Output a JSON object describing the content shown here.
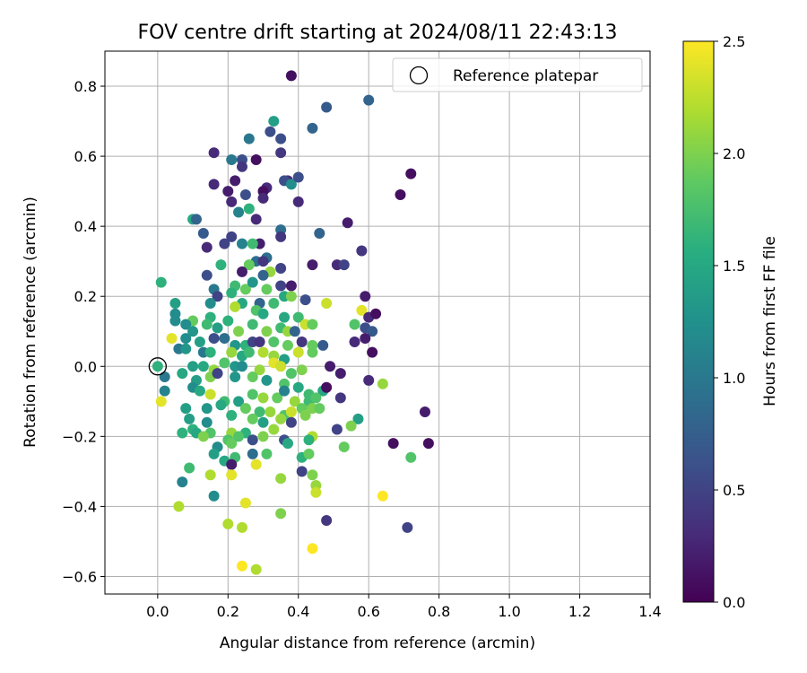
{
  "chart_data": {
    "type": "scatter",
    "title": "FOV centre drift starting at 2024/08/11 22:43:13",
    "xlabel": "Angular distance from reference (arcmin)",
    "ylabel": "Rotation from reference (arcmin)",
    "xlim": [
      -0.15,
      1.4
    ],
    "ylim": [
      -0.65,
      0.9
    ],
    "x_ticks": [
      0.0,
      0.2,
      0.4,
      0.6,
      0.8,
      1.0,
      1.2,
      1.4
    ],
    "x_tick_labels": [
      "0.0",
      "0.2",
      "0.4",
      "0.6",
      "0.8",
      "1.0",
      "1.2",
      "1.4"
    ],
    "y_ticks": [
      -0.6,
      -0.4,
      -0.2,
      0.0,
      0.2,
      0.4,
      0.6,
      0.8
    ],
    "y_tick_labels": [
      "−0.6",
      "−0.4",
      "−0.2",
      "0.0",
      "0.2",
      "0.4",
      "0.6",
      "0.8"
    ],
    "grid": true,
    "colormap": "viridis",
    "colorbar": {
      "label": "Hours from first FF file",
      "range": [
        0.0,
        2.5
      ],
      "ticks": [
        0.0,
        0.5,
        1.0,
        1.5,
        2.0,
        2.5
      ],
      "tick_labels": [
        "0.0",
        "0.5",
        "1.0",
        "1.5",
        "2.0",
        "2.5"
      ]
    },
    "legend": {
      "placement": "top-right",
      "label": "Reference platepar"
    },
    "reference_point": {
      "x": 0.0,
      "y": 0.0
    },
    "points": [
      [
        0.38,
        0.83,
        0.1
      ],
      [
        0.6,
        0.76,
        0.8
      ],
      [
        0.48,
        0.74,
        0.7
      ],
      [
        0.33,
        0.7,
        1.4
      ],
      [
        0.44,
        0.68,
        0.8
      ],
      [
        0.32,
        0.67,
        0.6
      ],
      [
        0.26,
        0.65,
        1.0
      ],
      [
        0.35,
        0.65,
        0.6
      ],
      [
        0.16,
        0.61,
        0.3
      ],
      [
        0.35,
        0.61,
        0.4
      ],
      [
        0.21,
        0.59,
        1.0
      ],
      [
        0.24,
        0.59,
        0.6
      ],
      [
        0.28,
        0.59,
        0.1
      ],
      [
        0.24,
        0.57,
        0.4
      ],
      [
        0.37,
        0.53,
        0.3
      ],
      [
        0.16,
        0.52,
        0.3
      ],
      [
        0.22,
        0.53,
        0.2
      ],
      [
        0.31,
        0.51,
        0.3
      ],
      [
        0.36,
        0.53,
        0.6
      ],
      [
        0.38,
        0.52,
        1.2
      ],
      [
        0.4,
        0.54,
        0.6
      ],
      [
        0.72,
        0.55,
        0.1
      ],
      [
        0.2,
        0.5,
        0.2
      ],
      [
        0.25,
        0.49,
        0.6
      ],
      [
        0.3,
        0.5,
        0.1
      ],
      [
        0.21,
        0.47,
        0.3
      ],
      [
        0.3,
        0.48,
        0.3
      ],
      [
        0.4,
        0.47,
        0.3
      ],
      [
        0.69,
        0.49,
        0.1
      ],
      [
        0.23,
        0.44,
        1.1
      ],
      [
        0.26,
        0.45,
        1.6
      ],
      [
        0.1,
        0.42,
        1.5
      ],
      [
        0.11,
        0.42,
        0.8
      ],
      [
        0.28,
        0.42,
        0.3
      ],
      [
        0.35,
        0.39,
        0.9
      ],
      [
        0.46,
        0.38,
        0.8
      ],
      [
        0.54,
        0.41,
        0.2
      ],
      [
        0.13,
        0.38,
        0.7
      ],
      [
        0.21,
        0.37,
        0.5
      ],
      [
        0.29,
        0.35,
        0.2
      ],
      [
        0.35,
        0.37,
        0.4
      ],
      [
        0.19,
        0.35,
        0.5
      ],
      [
        0.14,
        0.34,
        0.3
      ],
      [
        0.24,
        0.35,
        1.1
      ],
      [
        0.27,
        0.35,
        1.7
      ],
      [
        0.58,
        0.33,
        0.4
      ],
      [
        0.31,
        0.31,
        0.9
      ],
      [
        0.28,
        0.3,
        0.9
      ],
      [
        0.18,
        0.29,
        1.6
      ],
      [
        0.26,
        0.29,
        1.9
      ],
      [
        0.3,
        0.3,
        0.4
      ],
      [
        0.44,
        0.29,
        0.2
      ],
      [
        0.51,
        0.29,
        0.3
      ],
      [
        0.53,
        0.29,
        0.5
      ],
      [
        0.35,
        0.28,
        0.5
      ],
      [
        0.24,
        0.27,
        0.2
      ],
      [
        0.32,
        0.27,
        2.1
      ],
      [
        0.14,
        0.26,
        0.6
      ],
      [
        0.3,
        0.26,
        0.8
      ],
      [
        0.01,
        0.24,
        1.6
      ],
      [
        0.16,
        0.22,
        1.0
      ],
      [
        0.22,
        0.23,
        1.7
      ],
      [
        0.25,
        0.22,
        1.9
      ],
      [
        0.35,
        0.23,
        0.5
      ],
      [
        0.38,
        0.23,
        0.2
      ],
      [
        0.17,
        0.2,
        0.5
      ],
      [
        0.21,
        0.21,
        1.6
      ],
      [
        0.27,
        0.24,
        1.3
      ],
      [
        0.31,
        0.22,
        1.9
      ],
      [
        0.36,
        0.2,
        1.5
      ],
      [
        0.38,
        0.2,
        2.0
      ],
      [
        0.15,
        0.18,
        1.2
      ],
      [
        0.24,
        0.18,
        1.5
      ],
      [
        0.29,
        0.18,
        0.8
      ],
      [
        0.33,
        0.18,
        1.7
      ],
      [
        0.42,
        0.19,
        0.6
      ],
      [
        0.48,
        0.18,
        2.3
      ],
      [
        0.59,
        0.2,
        0.2
      ],
      [
        0.05,
        0.18,
        1.4
      ],
      [
        0.05,
        0.15,
        1.2
      ],
      [
        0.1,
        0.13,
        1.9
      ],
      [
        0.15,
        0.14,
        1.6
      ],
      [
        0.2,
        0.13,
        1.6
      ],
      [
        0.22,
        0.17,
        2.2
      ],
      [
        0.28,
        0.16,
        1.8
      ],
      [
        0.3,
        0.15,
        1.5
      ],
      [
        0.36,
        0.14,
        1.5
      ],
      [
        0.4,
        0.14,
        1.7
      ],
      [
        0.42,
        0.12,
        2.3
      ],
      [
        0.58,
        0.16,
        2.4
      ],
      [
        0.6,
        0.14,
        0.3
      ],
      [
        0.62,
        0.15,
        0.1
      ],
      [
        0.05,
        0.13,
        1.2
      ],
      [
        0.08,
        0.12,
        1.2
      ],
      [
        0.1,
        0.1,
        1.3
      ],
      [
        0.14,
        0.12,
        1.7
      ],
      [
        0.17,
        0.11,
        1.4
      ],
      [
        0.23,
        0.1,
        2.0
      ],
      [
        0.27,
        0.12,
        1.7
      ],
      [
        0.31,
        0.1,
        2.0
      ],
      [
        0.35,
        0.11,
        1.7
      ],
      [
        0.37,
        0.1,
        2.1
      ],
      [
        0.39,
        0.1,
        0.8
      ],
      [
        0.44,
        0.12,
        1.9
      ],
      [
        0.56,
        0.12,
        1.8
      ],
      [
        0.59,
        0.11,
        0.6
      ],
      [
        0.61,
        0.1,
        0.7
      ],
      [
        0.04,
        0.08,
        2.4
      ],
      [
        0.08,
        0.08,
        1.2
      ],
      [
        0.12,
        0.07,
        1.4
      ],
      [
        0.16,
        0.08,
        0.6
      ],
      [
        0.19,
        0.08,
        0.9
      ],
      [
        0.22,
        0.06,
        1.3
      ],
      [
        0.25,
        0.06,
        1.6
      ],
      [
        0.27,
        0.07,
        0.5
      ],
      [
        0.29,
        0.07,
        0.4
      ],
      [
        0.33,
        0.07,
        1.8
      ],
      [
        0.37,
        0.06,
        1.9
      ],
      [
        0.41,
        0.07,
        0.4
      ],
      [
        0.44,
        0.06,
        1.9
      ],
      [
        0.47,
        0.06,
        0.7
      ],
      [
        0.56,
        0.07,
        0.3
      ],
      [
        0.59,
        0.08,
        0.2
      ],
      [
        0.06,
        0.05,
        1.0
      ],
      [
        0.08,
        0.05,
        1.3
      ],
      [
        0.13,
        0.04,
        1.0
      ],
      [
        0.15,
        0.04,
        1.6
      ],
      [
        0.21,
        0.04,
        2.1
      ],
      [
        0.24,
        0.03,
        1.5
      ],
      [
        0.26,
        0.04,
        1.7
      ],
      [
        0.3,
        0.04,
        2.2
      ],
      [
        0.33,
        0.03,
        2.1
      ],
      [
        0.36,
        0.02,
        1.4
      ],
      [
        0.4,
        0.04,
        2.3
      ],
      [
        0.44,
        0.04,
        1.9
      ],
      [
        0.61,
        0.04,
        0.1
      ],
      [
        0.0,
        0.0,
        1.6
      ],
      [
        0.1,
        0.0,
        1.4
      ],
      [
        0.13,
        0.0,
        1.5
      ],
      [
        0.16,
        -0.01,
        2.1
      ],
      [
        0.19,
        0.01,
        1.8
      ],
      [
        0.22,
        0.0,
        1.3
      ],
      [
        0.24,
        0.0,
        1.2
      ],
      [
        0.29,
        -0.01,
        2.1
      ],
      [
        0.33,
        0.01,
        2.4
      ],
      [
        0.35,
        0.0,
        2.3
      ],
      [
        0.38,
        -0.02,
        1.8
      ],
      [
        0.41,
        -0.01,
        2.0
      ],
      [
        0.49,
        0.0,
        0.2
      ],
      [
        0.52,
        -0.02,
        0.2
      ],
      [
        0.6,
        -0.04,
        0.3
      ],
      [
        0.64,
        -0.05,
        2.1
      ],
      [
        0.02,
        -0.03,
        1.0
      ],
      [
        0.07,
        -0.02,
        1.5
      ],
      [
        0.11,
        -0.04,
        1.4
      ],
      [
        0.15,
        -0.03,
        2.0
      ],
      [
        0.17,
        -0.02,
        0.5
      ],
      [
        0.22,
        -0.03,
        1.3
      ],
      [
        0.27,
        -0.03,
        1.9
      ],
      [
        0.31,
        -0.04,
        1.3
      ],
      [
        0.36,
        -0.05,
        1.8
      ],
      [
        0.4,
        -0.06,
        1.5
      ],
      [
        0.43,
        -0.08,
        1.7
      ],
      [
        0.47,
        -0.07,
        1.5
      ],
      [
        0.02,
        -0.07,
        1.1
      ],
      [
        0.1,
        -0.06,
        1.2
      ],
      [
        0.12,
        -0.07,
        1.5
      ],
      [
        0.15,
        -0.08,
        2.3
      ],
      [
        0.19,
        -0.1,
        1.7
      ],
      [
        0.23,
        -0.1,
        1.4
      ],
      [
        0.27,
        -0.08,
        1.8
      ],
      [
        0.3,
        -0.09,
        2.1
      ],
      [
        0.34,
        -0.09,
        1.9
      ],
      [
        0.36,
        -0.07,
        1.1
      ],
      [
        0.39,
        -0.1,
        2.1
      ],
      [
        0.43,
        -0.1,
        1.7
      ],
      [
        0.45,
        -0.09,
        1.8
      ],
      [
        0.48,
        -0.06,
        0.1
      ],
      [
        0.52,
        -0.09,
        0.4
      ],
      [
        0.08,
        -0.12,
        1.4
      ],
      [
        0.14,
        -0.12,
        1.3
      ],
      [
        0.18,
        -0.11,
        1.5
      ],
      [
        0.25,
        -0.12,
        1.9
      ],
      [
        0.29,
        -0.13,
        1.7
      ],
      [
        0.32,
        -0.13,
        2.1
      ],
      [
        0.36,
        -0.14,
        1.8
      ],
      [
        0.38,
        -0.13,
        2.3
      ],
      [
        0.41,
        -0.12,
        1.9
      ],
      [
        0.44,
        -0.12,
        2.0
      ],
      [
        0.46,
        -0.12,
        1.9
      ],
      [
        0.76,
        -0.13,
        0.2
      ],
      [
        0.01,
        -0.1,
        2.4
      ],
      [
        0.09,
        -0.15,
        1.4
      ],
      [
        0.14,
        -0.16,
        1.2
      ],
      [
        0.21,
        -0.14,
        1.6
      ],
      [
        0.27,
        -0.15,
        1.9
      ],
      [
        0.3,
        -0.16,
        1.4
      ],
      [
        0.35,
        -0.15,
        2.1
      ],
      [
        0.38,
        -0.16,
        0.5
      ],
      [
        0.42,
        -0.14,
        2.0
      ],
      [
        0.57,
        -0.15,
        1.4
      ],
      [
        0.1,
        -0.18,
        1.6
      ],
      [
        0.15,
        -0.19,
        1.8
      ],
      [
        0.21,
        -0.19,
        2.1
      ],
      [
        0.25,
        -0.19,
        1.6
      ],
      [
        0.33,
        -0.18,
        2.1
      ],
      [
        0.36,
        -0.21,
        0.6
      ],
      [
        0.44,
        -0.2,
        2.2
      ],
      [
        0.51,
        -0.18,
        0.5
      ],
      [
        0.55,
        -0.17,
        2.0
      ],
      [
        0.07,
        -0.19,
        1.6
      ],
      [
        0.11,
        -0.19,
        1.5
      ],
      [
        0.13,
        -0.2,
        2.0
      ],
      [
        0.17,
        -0.23,
        1.2
      ],
      [
        0.2,
        -0.21,
        1.8
      ],
      [
        0.21,
        -0.22,
        1.9
      ],
      [
        0.23,
        -0.2,
        1.8
      ],
      [
        0.27,
        -0.21,
        0.6
      ],
      [
        0.3,
        -0.2,
        2.0
      ],
      [
        0.37,
        -0.22,
        1.5
      ],
      [
        0.43,
        -0.21,
        1.6
      ],
      [
        0.67,
        -0.22,
        0.1
      ],
      [
        0.77,
        -0.22,
        0.1
      ],
      [
        0.16,
        -0.25,
        1.4
      ],
      [
        0.22,
        -0.26,
        1.7
      ],
      [
        0.27,
        -0.25,
        0.9
      ],
      [
        0.31,
        -0.25,
        1.8
      ],
      [
        0.41,
        -0.26,
        1.6
      ],
      [
        0.43,
        -0.25,
        1.9
      ],
      [
        0.53,
        -0.23,
        1.9
      ],
      [
        0.19,
        -0.27,
        1.5
      ],
      [
        0.21,
        -0.28,
        0.2
      ],
      [
        0.28,
        -0.28,
        2.4
      ],
      [
        0.72,
        -0.26,
        1.8
      ],
      [
        0.09,
        -0.29,
        1.7
      ],
      [
        0.15,
        -0.31,
        2.2
      ],
      [
        0.21,
        -0.31,
        2.4
      ],
      [
        0.35,
        -0.32,
        2.1
      ],
      [
        0.41,
        -0.3,
        0.5
      ],
      [
        0.44,
        -0.31,
        2.0
      ],
      [
        0.45,
        -0.34,
        2.1
      ],
      [
        0.07,
        -0.33,
        1.1
      ],
      [
        0.16,
        -0.37,
        1.2
      ],
      [
        0.45,
        -0.36,
        2.3
      ],
      [
        0.64,
        -0.37,
        2.5
      ],
      [
        0.06,
        -0.4,
        2.2
      ],
      [
        0.25,
        -0.39,
        2.4
      ],
      [
        0.35,
        -0.42,
        2.0
      ],
      [
        0.48,
        -0.44,
        0.4
      ],
      [
        0.71,
        -0.46,
        0.5
      ],
      [
        0.2,
        -0.45,
        2.2
      ],
      [
        0.24,
        -0.46,
        2.2
      ],
      [
        0.44,
        -0.52,
        2.5
      ],
      [
        0.24,
        -0.57,
        2.5
      ],
      [
        0.28,
        -0.58,
        2.2
      ]
    ]
  }
}
